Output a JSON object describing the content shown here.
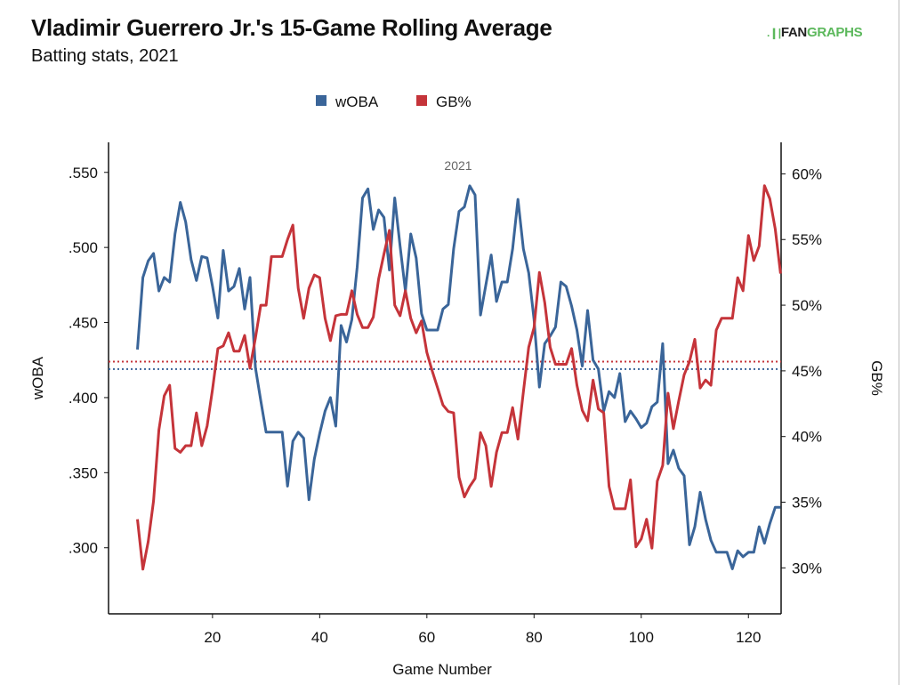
{
  "title": "Vladimir Guerrero Jr.'s 15-Game Rolling Average",
  "subtitle": "Batting stats, 2021",
  "logo": {
    "mark": ".❙|",
    "text_dark": "FAN",
    "text_green": "GRAPHS"
  },
  "chart_data": {
    "type": "line",
    "title": "Vladimir Guerrero Jr.'s 15-Game Rolling Average",
    "subtitle": "Batting stats, 2021",
    "annotation": "2021",
    "xlabel": "Game Number",
    "ylabel_left": "wOBA",
    "ylabel_right": "GB%",
    "xlim": [
      0.6,
      126.1
    ],
    "ylim_left": [
      0.256,
      0.57
    ],
    "ylim_right": [
      26.5,
      62.4
    ],
    "x_ticks": [
      20,
      40,
      60,
      80,
      100,
      120
    ],
    "y_left_ticks": [
      ".300",
      ".350",
      ".400",
      ".450",
      ".500",
      ".550"
    ],
    "y_left_tick_values": [
      0.3,
      0.35,
      0.4,
      0.45,
      0.5,
      0.55
    ],
    "y_right_ticks": [
      "30%",
      "35%",
      "40%",
      "45%",
      "50%",
      "55%",
      "60%"
    ],
    "y_right_tick_values": [
      30,
      35,
      40,
      45,
      50,
      55,
      60
    ],
    "grid": false,
    "legend_position": "top-center",
    "x_start": 6,
    "series": [
      {
        "name": "wOBA",
        "axis": "left",
        "color": "#3a6599",
        "season_average": 0.419,
        "values": [
          0.432,
          0.48,
          0.491,
          0.496,
          0.471,
          0.48,
          0.477,
          0.509,
          0.53,
          0.517,
          0.492,
          0.478,
          0.494,
          0.493,
          0.474,
          0.453,
          0.498,
          0.471,
          0.474,
          0.486,
          0.459,
          0.48,
          0.42,
          0.398,
          0.377,
          0.377,
          0.377,
          0.377,
          0.341,
          0.371,
          0.377,
          0.373,
          0.332,
          0.359,
          0.376,
          0.391,
          0.4,
          0.381,
          0.448,
          0.437,
          0.452,
          0.487,
          0.533,
          0.539,
          0.512,
          0.525,
          0.52,
          0.485,
          0.533,
          0.501,
          0.471,
          0.509,
          0.493,
          0.456,
          0.445,
          0.445,
          0.445,
          0.459,
          0.462,
          0.499,
          0.524,
          0.527,
          0.541,
          0.535,
          0.455,
          0.475,
          0.495,
          0.464,
          0.477,
          0.477,
          0.499,
          0.532,
          0.499,
          0.483,
          0.452,
          0.407,
          0.436,
          0.441,
          0.447,
          0.477,
          0.474,
          0.461,
          0.445,
          0.421,
          0.458,
          0.425,
          0.419,
          0.391,
          0.404,
          0.4,
          0.416,
          0.384,
          0.391,
          0.386,
          0.38,
          0.383,
          0.394,
          0.397,
          0.436,
          0.356,
          0.365,
          0.353,
          0.348,
          0.302,
          0.314,
          0.337,
          0.319,
          0.305,
          0.297,
          0.297,
          0.297,
          0.286,
          0.298,
          0.294,
          0.297,
          0.297,
          0.314,
          0.303,
          0.316,
          0.327,
          0.327
        ]
      },
      {
        "name": "GB%",
        "axis": "right",
        "color": "#c5343a",
        "season_average": 45.7,
        "values": [
          33.7,
          29.9,
          32.0,
          35.1,
          40.5,
          43.1,
          43.9,
          39.1,
          38.8,
          39.3,
          39.3,
          41.8,
          39.3,
          40.8,
          43.6,
          46.7,
          46.9,
          47.9,
          46.5,
          46.5,
          47.7,
          45.2,
          47.5,
          50.0,
          50.0,
          53.7,
          53.7,
          53.7,
          55.0,
          56.1,
          51.3,
          49.0,
          51.3,
          52.3,
          52.1,
          49.0,
          47.3,
          49.2,
          49.3,
          49.3,
          51.1,
          49.3,
          48.3,
          48.3,
          49.1,
          52.0,
          53.9,
          55.7,
          50.0,
          49.2,
          51.1,
          49.0,
          47.9,
          48.8,
          46.4,
          45.0,
          43.7,
          42.4,
          41.9,
          41.8,
          36.9,
          35.4,
          36.2,
          36.8,
          40.3,
          39.3,
          36.2,
          38.8,
          40.3,
          40.3,
          42.2,
          39.8,
          43.4,
          46.8,
          48.3,
          52.5,
          50.2,
          46.8,
          45.5,
          45.5,
          45.5,
          46.7,
          43.9,
          42.0,
          41.2,
          44.3,
          42.1,
          41.8,
          36.2,
          34.5,
          34.5,
          34.5,
          36.7,
          31.6,
          32.2,
          33.7,
          31.5,
          36.6,
          37.8,
          43.3,
          40.6,
          42.7,
          44.7,
          45.7,
          47.4,
          43.7,
          44.3,
          43.9,
          48.1,
          49.0,
          49.0,
          49.0,
          52.1,
          51.1,
          55.3,
          53.4,
          54.5,
          59.1,
          58.1,
          55.8,
          52.4
        ]
      }
    ]
  }
}
